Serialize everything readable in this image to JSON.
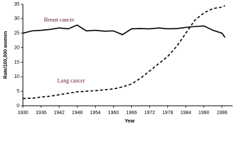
{
  "chart_data": {
    "type": "line",
    "x_label": "Year",
    "y_label": "Rate/100,000 women",
    "x": [
      1930,
      1933,
      1936,
      1939,
      1942,
      1945,
      1948,
      1951,
      1954,
      1957,
      1960,
      1963,
      1966,
      1969,
      1972,
      1975,
      1978,
      1981,
      1984,
      1987,
      1990,
      1993,
      1996,
      1997
    ],
    "series": [
      {
        "name": "Breast cancer",
        "color": "#000000",
        "dashed": false,
        "values": [
          25,
          25.8,
          26,
          26.3,
          26.8,
          26.5,
          27.8,
          25.8,
          26,
          25.7,
          25.8,
          24.5,
          26.5,
          26.6,
          26.5,
          26.8,
          26.5,
          26.6,
          27,
          27.3,
          27.5,
          26,
          25,
          23.5
        ]
      },
      {
        "name": "Lung cancer",
        "color": "#000000",
        "dashed": true,
        "values": [
          2.5,
          2.6,
          3,
          3.3,
          3.8,
          4.3,
          4.8,
          5,
          5.2,
          5.5,
          5.8,
          6.5,
          7.5,
          9.5,
          12,
          14.5,
          17,
          20.5,
          25,
          29.5,
          32,
          33.5,
          34,
          34.5
        ]
      }
    ],
    "xlim": [
      1930,
      1999.5
    ],
    "ylim": [
      0,
      35
    ],
    "xticks": [
      1930,
      1936,
      1942,
      1948,
      1954,
      1960,
      1966,
      1972,
      1978,
      1984,
      1990,
      1996
    ],
    "yticks": [
      0,
      5,
      10,
      15,
      20,
      25,
      30,
      35
    ],
    "grid": false
  }
}
